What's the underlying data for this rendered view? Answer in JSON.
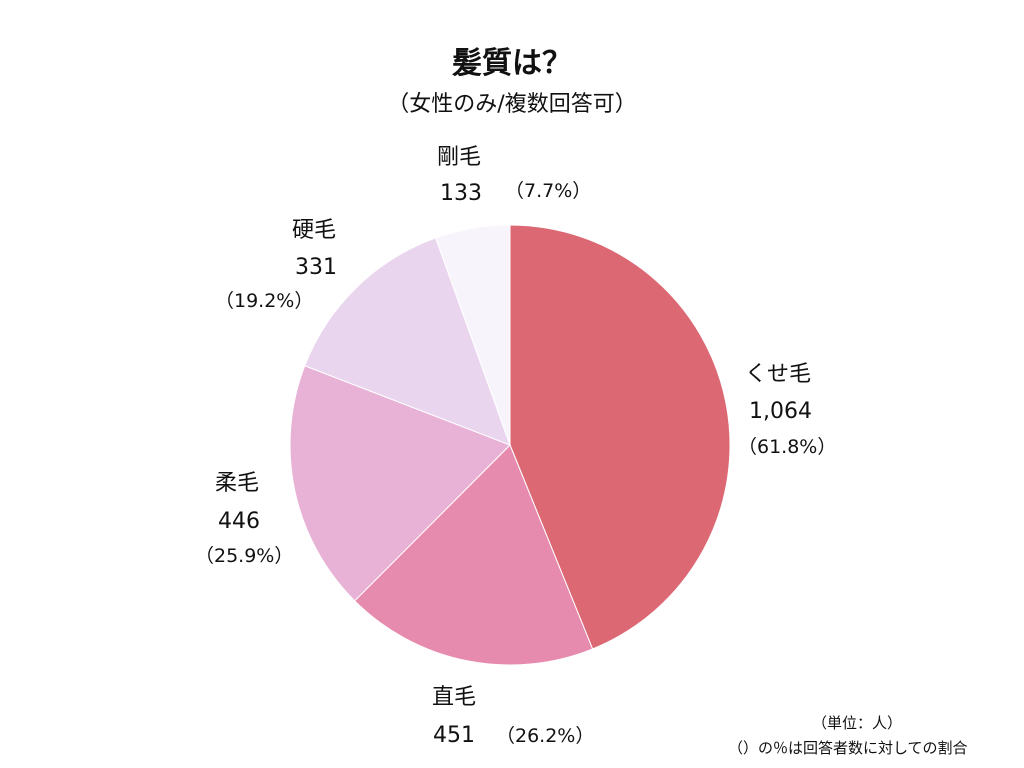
{
  "chart_data": {
    "type": "pie",
    "title": "髪質は？",
    "subtitle": "（女性のみ/複数回答可）",
    "slices": [
      {
        "label": "くせ毛",
        "value": 1064,
        "value_text": "1,064",
        "percent_text": "（61.8%）",
        "color": "#dc6874"
      },
      {
        "label": "直毛",
        "value": 451,
        "value_text": "451",
        "percent_text": "（26.2%）",
        "color": "#e78bae"
      },
      {
        "label": "柔毛",
        "value": 446,
        "value_text": "446",
        "percent_text": "（25.9%）",
        "color": "#e8b2d6"
      },
      {
        "label": "硬毛",
        "value": 331,
        "value_text": "331",
        "percent_text": "（19.2%）",
        "color": "#ead5ef"
      },
      {
        "label": "剛毛",
        "value": 133,
        "value_text": "133",
        "percent_text": "（7.7%）",
        "color": "#f8f4fc"
      }
    ],
    "notes": [
      "（単位：人）",
      "（）の％は回答者数に対しての割合"
    ]
  }
}
